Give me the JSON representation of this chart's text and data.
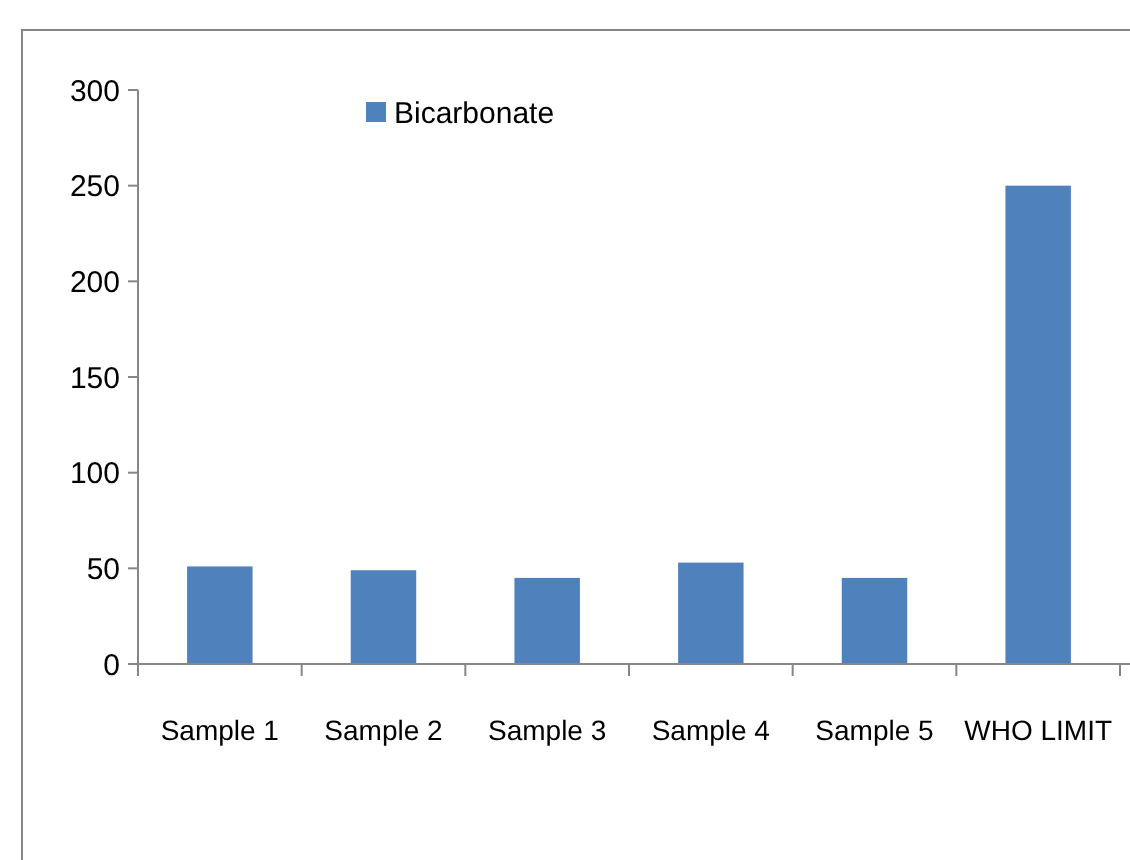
{
  "chart_data": {
    "type": "bar",
    "categories": [
      "Sample 1",
      "Sample 2",
      "Sample 3",
      "Sample 4",
      "Sample 5",
      "WHO LIMIT"
    ],
    "series": [
      {
        "name": "Bicarbonate",
        "color": "#4f81bd",
        "values": [
          51,
          49,
          45,
          53,
          45,
          250
        ]
      }
    ],
    "ylim": [
      0,
      300
    ],
    "yticks": [
      0,
      50,
      100,
      150,
      200,
      250,
      300
    ],
    "legend": "top",
    "grid": false
  }
}
